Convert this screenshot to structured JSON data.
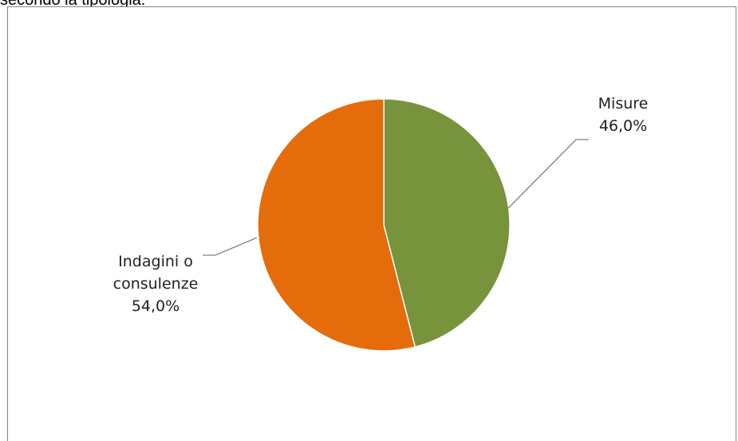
{
  "page": {
    "caption_fragment": "secondo la tipologia."
  },
  "chart_data": {
    "type": "pie",
    "title": "",
    "categories": [
      "Misure",
      "Indagini o consulenze"
    ],
    "values": [
      46.0,
      54.0
    ],
    "value_labels": [
      "46,0%",
      "54,0%"
    ],
    "label_lines": [
      [
        "Misure",
        "46,0%"
      ],
      [
        "Indagini o",
        "consulenze",
        "54,0%"
      ]
    ],
    "colors": [
      "#77933C",
      "#E46C0A"
    ],
    "start_angle": "12 o'clock",
    "direction": "clockwise",
    "legend": "none",
    "label_placement": "outside with leader lines"
  }
}
